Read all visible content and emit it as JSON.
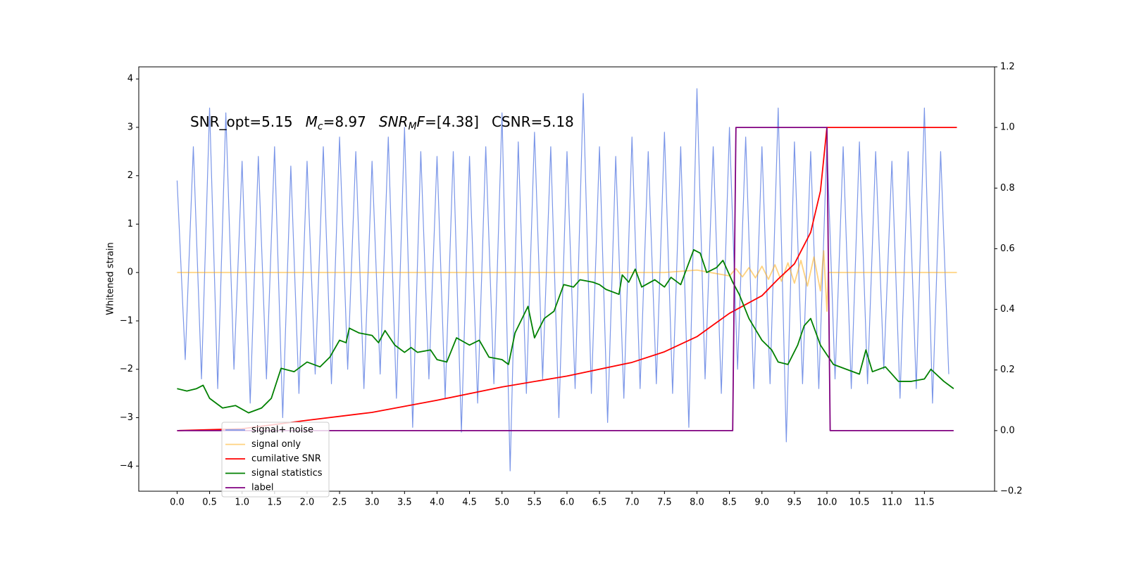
{
  "chart_data": {
    "type": "line",
    "annotation": [
      [
        "SNR_opt=5.15"
      ],
      [
        "M",
        "c",
        "=8.97"
      ],
      [
        "SNR",
        "M",
        "F",
        "=[4.38]"
      ],
      [
        "CSNR=5.18"
      ]
    ],
    "ylabel": "Whitened strain",
    "xlim": [
      -0.59,
      12.58
    ],
    "ylim": [
      -4.52,
      4.25
    ],
    "y2lim": [
      -0.2,
      1.2
    ],
    "xticks": [
      {
        "value": 0,
        "label": "0.0"
      },
      {
        "value": 0.5,
        "label": "0.5"
      },
      {
        "value": 1,
        "label": "1.0"
      },
      {
        "value": 1.5,
        "label": "1.5"
      },
      {
        "value": 2,
        "label": "2.0"
      },
      {
        "value": 2.5,
        "label": "2.5"
      },
      {
        "value": 3,
        "label": "3.0"
      },
      {
        "value": 3.5,
        "label": "3.5"
      },
      {
        "value": 4,
        "label": "4.0"
      },
      {
        "value": 4.5,
        "label": "4.5"
      },
      {
        "value": 5,
        "label": "5.0"
      },
      {
        "value": 5.5,
        "label": "5.5"
      },
      {
        "value": 6,
        "label": "6.0"
      },
      {
        "value": 6.5,
        "label": "6.5"
      },
      {
        "value": 7,
        "label": "7.0"
      },
      {
        "value": 7.5,
        "label": "7.5"
      },
      {
        "value": 8,
        "label": "8.0"
      },
      {
        "value": 8.5,
        "label": "8.5"
      },
      {
        "value": 9,
        "label": "9.0"
      },
      {
        "value": 9.5,
        "label": "9.5"
      },
      {
        "value": 10,
        "label": "10.0"
      },
      {
        "value": 10.5,
        "label": "10.5"
      },
      {
        "value": 11,
        "label": "11.0"
      },
      {
        "value": 11.5,
        "label": "11.5"
      }
    ],
    "yticks": [
      4,
      3,
      2,
      1,
      0,
      {
        "value": -1,
        "label": "−1"
      },
      {
        "value": -2,
        "label": "−2"
      },
      {
        "value": -3,
        "label": "−3"
      },
      {
        "value": -4,
        "label": "−4"
      }
    ],
    "y2ticks": [
      1.2,
      {
        "value": 1,
        "label": "1.0"
      },
      0.8,
      0.6,
      0.4,
      0.2,
      {
        "value": 0,
        "label": "0.0"
      },
      {
        "value": -0.2,
        "label": "−0.2"
      }
    ],
    "legend": "lower left",
    "series": [
      {
        "name": "signal+ noise",
        "color": "#7b96e8",
        "axis": "y",
        "x": [
          0,
          0.125,
          0.25,
          0.375,
          0.5,
          0.625,
          0.75,
          0.875,
          1,
          1.125,
          1.25,
          1.375,
          1.5,
          1.625,
          1.75,
          1.875,
          2,
          2.125,
          2.25,
          2.375,
          2.5,
          2.625,
          2.75,
          2.875,
          3,
          3.125,
          3.25,
          3.375,
          3.5,
          3.625,
          3.75,
          3.875,
          4,
          4.125,
          4.25,
          4.375,
          4.5,
          4.625,
          4.75,
          4.875,
          5,
          5.125,
          5.25,
          5.375,
          5.5,
          5.625,
          5.75,
          5.875,
          6,
          6.125,
          6.25,
          6.375,
          6.5,
          6.625,
          6.75,
          6.875,
          7,
          7.125,
          7.25,
          7.375,
          7.5,
          7.625,
          7.75,
          7.875,
          8,
          8.125,
          8.25,
          8.375,
          8.5,
          8.625,
          8.75,
          8.875,
          9,
          9.125,
          9.25,
          9.375,
          9.5,
          9.625,
          9.75,
          9.875,
          10,
          10.125,
          10.25,
          10.375,
          10.5,
          10.625,
          10.75,
          10.875,
          11,
          11.125,
          11.25,
          11.375,
          11.5,
          11.625,
          11.75,
          11.875
        ],
        "values": [
          1.9,
          -1.8,
          2.6,
          -2.2,
          3.4,
          -2.4,
          3.3,
          -2.0,
          2.3,
          -2.7,
          2.4,
          -2.2,
          2.6,
          -3.0,
          2.2,
          -2.5,
          2.3,
          -2.1,
          2.6,
          -2.3,
          2.8,
          -2.0,
          2.5,
          -2.4,
          2.3,
          -2.1,
          2.8,
          -2.6,
          3.0,
          -3.2,
          2.5,
          -2.2,
          2.4,
          -2.6,
          2.5,
          -3.3,
          2.4,
          -2.7,
          2.6,
          -2.3,
          3.3,
          -4.1,
          2.7,
          -2.5,
          2.9,
          -2.2,
          2.6,
          -3.0,
          2.5,
          -2.4,
          3.7,
          -2.5,
          2.6,
          -3.1,
          2.4,
          -2.6,
          2.8,
          -2.4,
          2.5,
          -2.3,
          2.9,
          -2.5,
          2.6,
          -3.2,
          3.8,
          -2.2,
          2.6,
          -2.5,
          3.0,
          -2.0,
          2.8,
          -2.4,
          2.6,
          -2.3,
          3.4,
          -3.5,
          2.7,
          -2.3,
          2.5,
          -2.4,
          2.7,
          -2.2,
          2.6,
          -2.4,
          2.7,
          -2.3,
          2.5,
          -2.0,
          2.3,
          -2.6,
          2.5,
          -2.4,
          3.4,
          -2.7,
          2.5,
          -2.1
        ]
      },
      {
        "name": "signal only",
        "color": "#ffa500",
        "axis": "y",
        "x": [
          0,
          7.5,
          8.0,
          8.5,
          8.6,
          8.7,
          8.8,
          8.9,
          9.0,
          9.1,
          9.2,
          9.3,
          9.4,
          9.5,
          9.6,
          9.7,
          9.8,
          9.9,
          9.95,
          10.0,
          10.02,
          12.0
        ],
        "values": [
          0,
          0,
          0.05,
          -0.07,
          0.08,
          -0.09,
          0.1,
          -0.11,
          0.13,
          -0.14,
          0.16,
          -0.18,
          0.2,
          -0.22,
          0.25,
          -0.28,
          0.32,
          -0.38,
          0.45,
          -0.8,
          0,
          0
        ]
      },
      {
        "name": "cumilative SNR",
        "color": "#ff0000",
        "axis": "y2",
        "x": [
          0,
          1,
          2,
          3,
          4,
          5,
          6,
          7,
          7.5,
          8,
          8.5,
          9,
          9.25,
          9.5,
          9.75,
          9.9,
          10,
          12
        ],
        "values": [
          0,
          0.006,
          0.034,
          0.06,
          0.1,
          0.144,
          0.18,
          0.225,
          0.26,
          0.31,
          0.387,
          0.445,
          0.5,
          0.55,
          0.654,
          0.79,
          1.0,
          1.0
        ]
      },
      {
        "name": "signal statistics",
        "color": "#008000",
        "axis": "y",
        "x": [
          0,
          0.15,
          0.3,
          0.4,
          0.5,
          0.7,
          0.9,
          1.1,
          1.3,
          1.45,
          1.6,
          1.8,
          2.0,
          2.2,
          2.35,
          2.5,
          2.6,
          2.65,
          2.8,
          3.0,
          3.1,
          3.2,
          3.35,
          3.5,
          3.6,
          3.7,
          3.9,
          4.0,
          4.15,
          4.3,
          4.5,
          4.65,
          4.8,
          5.0,
          5.1,
          5.2,
          5.4,
          5.5,
          5.65,
          5.8,
          5.95,
          6.1,
          6.2,
          6.4,
          6.5,
          6.6,
          6.8,
          6.85,
          6.95,
          7.05,
          7.15,
          7.35,
          7.5,
          7.6,
          7.75,
          7.95,
          8.05,
          8.15,
          8.3,
          8.4,
          8.55,
          8.65,
          8.8,
          9.0,
          9.15,
          9.25,
          9.4,
          9.55,
          9.65,
          9.75,
          9.9,
          10.0,
          10.1,
          10.3,
          10.5,
          10.6,
          10.7,
          10.9,
          11.1,
          11.3,
          11.5,
          11.6,
          11.8,
          11.95
        ],
        "values": [
          -2.4,
          -2.45,
          -2.4,
          -2.33,
          -2.6,
          -2.8,
          -2.75,
          -2.9,
          -2.8,
          -2.6,
          -1.98,
          -2.05,
          -1.85,
          -1.95,
          -1.75,
          -1.4,
          -1.45,
          -1.15,
          -1.25,
          -1.3,
          -1.45,
          -1.2,
          -1.5,
          -1.65,
          -1.55,
          -1.65,
          -1.6,
          -1.8,
          -1.85,
          -1.35,
          -1.5,
          -1.4,
          -1.75,
          -1.8,
          -1.9,
          -1.25,
          -0.7,
          -1.35,
          -0.95,
          -0.8,
          -0.25,
          -0.3,
          -0.15,
          -0.2,
          -0.25,
          -0.35,
          -0.45,
          -0.05,
          -0.2,
          0.07,
          -0.3,
          -0.15,
          -0.3,
          -0.1,
          -0.25,
          0.47,
          0.4,
          0.0,
          0.1,
          0.25,
          -0.2,
          -0.45,
          -0.95,
          -1.4,
          -1.6,
          -1.85,
          -1.9,
          -1.5,
          -1.1,
          -0.95,
          -1.5,
          -1.7,
          -1.9,
          -2.0,
          -2.1,
          -1.6,
          -2.05,
          -1.95,
          -2.25,
          -2.25,
          -2.2,
          -2.0,
          -2.25,
          -2.4
        ]
      },
      {
        "name": "label",
        "color": "#800080",
        "axis": "y2",
        "x": [
          0,
          8.55,
          8.6,
          10.0,
          10.05,
          11.95
        ],
        "values": [
          0,
          0,
          1,
          1,
          0,
          0
        ]
      }
    ]
  }
}
